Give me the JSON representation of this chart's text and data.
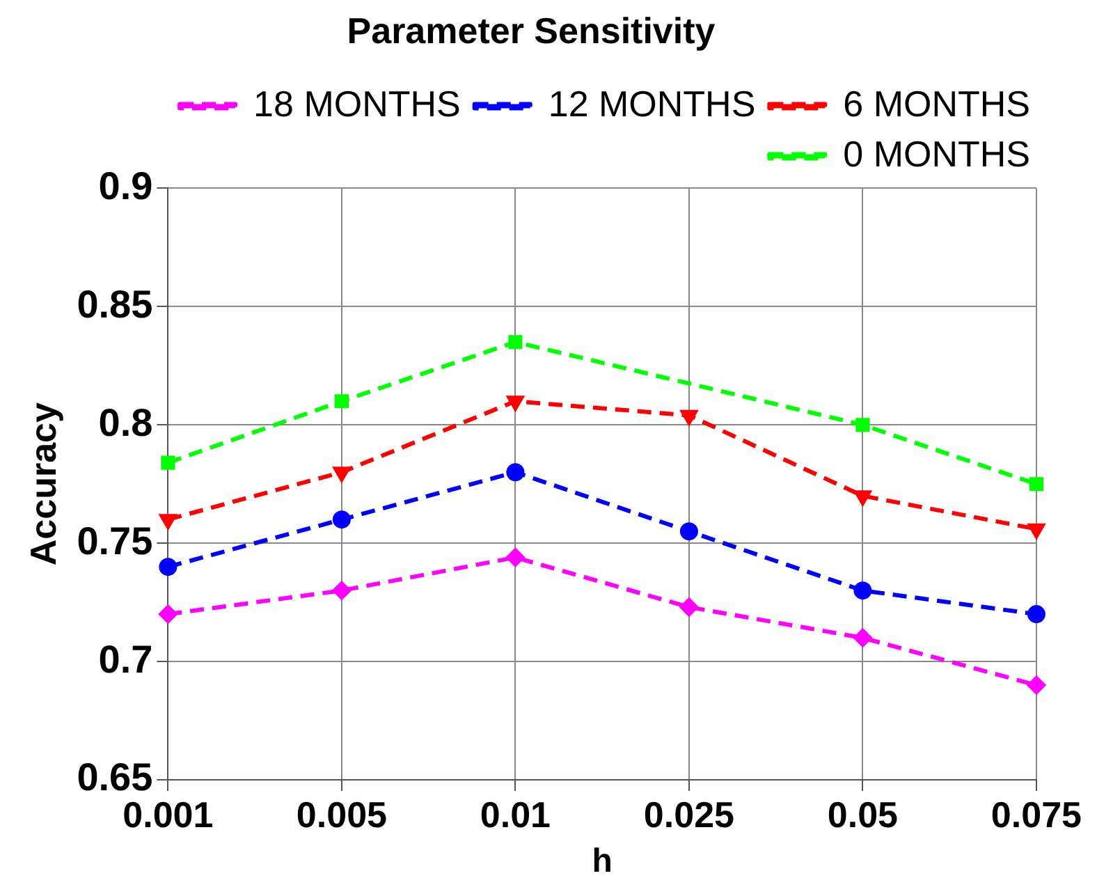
{
  "chart_data": {
    "type": "line",
    "title": "Parameter Sensitivity",
    "xlabel": "h",
    "ylabel": "Accuracy",
    "categories": [
      "0.001",
      "0.005",
      "0.01",
      "0.025",
      "0.05",
      "0.075"
    ],
    "series": [
      {
        "name": "18 MONTHS",
        "color": "#ff00ff",
        "marker": "diamond",
        "values": [
          0.72,
          0.73,
          0.744,
          0.723,
          0.71,
          0.69
        ]
      },
      {
        "name": "12 MONTHS",
        "color": "#0000ff",
        "marker": "circle",
        "values": [
          0.74,
          0.76,
          0.78,
          0.755,
          0.73,
          0.72
        ]
      },
      {
        "name": "6 MONTHS",
        "color": "#ff0000",
        "marker": "triangle",
        "values": [
          0.76,
          0.78,
          0.81,
          0.804,
          0.77,
          0.756
        ]
      },
      {
        "name": "0 MONTHS",
        "color": "#00ff00",
        "marker": "square",
        "values": [
          0.784,
          0.81,
          0.835,
          null,
          0.8,
          0.775
        ]
      }
    ],
    "ylim": [
      0.65,
      0.9
    ],
    "yticks": [
      0.65,
      0.7,
      0.75,
      0.8,
      0.85,
      0.9
    ],
    "grid": true,
    "legend": "top right",
    "line_style": "dashed"
  }
}
